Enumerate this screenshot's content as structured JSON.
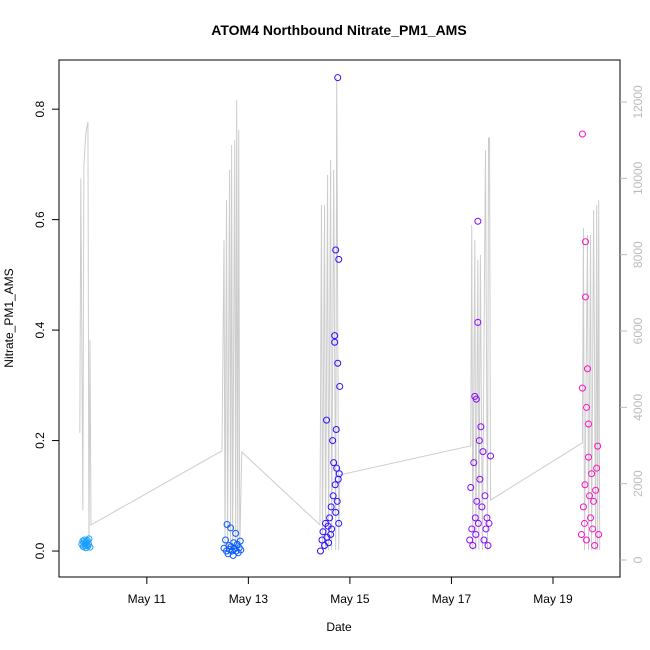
{
  "chart_data": {
    "type": "scatter",
    "title": "ATOM4 Northbound Nitrate_PM1_AMS",
    "x_label": "Date",
    "y_label": "Nitrate_PM1_AMS",
    "xlim": [
      9.27,
      20.32
    ],
    "xticks": [
      {
        "value": 11,
        "label": "May 11"
      },
      {
        "value": 13,
        "label": "May 13"
      },
      {
        "value": 15,
        "label": "May 15"
      },
      {
        "value": 17,
        "label": "May 17"
      },
      {
        "value": 19,
        "label": "May 19"
      }
    ],
    "ylim": [
      -0.047,
      0.889
    ],
    "yticks": [
      {
        "value": 0,
        "label": "0.0"
      },
      0.2,
      0.4,
      0.6,
      0.8
    ],
    "y2lim": [
      -445,
      13100
    ],
    "y2ticks": [
      0,
      2000,
      4000,
      6000,
      8000,
      10000,
      12000
    ],
    "y2_color": "#bbbbbb",
    "series": [
      {
        "color": "#1aa0ff",
        "x": [
          9.72,
          9.74,
          9.75,
          9.76,
          9.77,
          9.78,
          9.79,
          9.8,
          9.81,
          9.82,
          9.83,
          9.84,
          9.85,
          9.86,
          9.88
        ],
        "values": [
          0.012,
          0.018,
          0.008,
          0.015,
          0.02,
          0.01,
          0.014,
          0.006,
          0.017,
          0.011,
          0.019,
          0.009,
          0.013,
          0.022,
          0.007
        ]
      },
      {
        "color": "#0a5cff",
        "x": [
          12.52,
          12.55,
          12.57,
          12.58,
          12.6,
          12.62,
          12.63,
          12.65,
          12.66,
          12.68,
          12.7,
          12.71,
          12.73,
          12.75,
          12.76,
          12.78,
          12.8,
          12.82,
          12.84,
          12.85
        ],
        "values": [
          0.005,
          0.02,
          0.0,
          0.048,
          -0.005,
          0.01,
          0.003,
          0.042,
          0.008,
          0.0,
          -0.008,
          0.015,
          0.004,
          0.032,
          0.0,
          0.012,
          -0.003,
          0.006,
          0.018,
          0.002
        ]
      },
      {
        "color": "#2a10ff",
        "x": [
          14.42,
          14.45,
          14.47,
          14.5,
          14.52,
          14.54,
          14.55,
          14.57,
          14.58,
          14.6,
          14.62,
          14.63,
          14.64,
          14.66,
          14.67,
          14.68,
          14.7,
          14.7,
          14.71,
          14.72,
          14.72,
          14.73,
          14.74,
          14.75,
          14.76,
          14.76,
          14.77,
          14.78,
          14.78,
          14.79,
          14.8
        ],
        "values": [
          0.0,
          0.02,
          0.035,
          0.01,
          0.05,
          0.237,
          0.025,
          0.045,
          0.015,
          0.06,
          0.03,
          0.08,
          0.04,
          0.2,
          0.1,
          0.16,
          0.39,
          0.378,
          0.12,
          0.545,
          0.07,
          0.22,
          0.15,
          0.09,
          0.857,
          0.34,
          0.13,
          0.528,
          0.05,
          0.14,
          0.298
        ]
      },
      {
        "color": "#8a0aff",
        "x": [
          17.36,
          17.38,
          17.4,
          17.42,
          17.44,
          17.46,
          17.47,
          17.48,
          17.49,
          17.5,
          17.52,
          17.52,
          17.53,
          17.55,
          17.56,
          17.58,
          17.6,
          17.62,
          17.64,
          17.66,
          17.68,
          17.7,
          17.72,
          17.74,
          17.77
        ],
        "values": [
          0.02,
          0.115,
          0.04,
          0.01,
          0.16,
          0.28,
          0.06,
          0.03,
          0.275,
          0.09,
          0.597,
          0.414,
          0.05,
          0.2,
          0.13,
          0.225,
          0.08,
          0.18,
          0.02,
          0.1,
          0.04,
          0.06,
          0.01,
          0.05,
          0.172
        ]
      },
      {
        "color": "#ff10c8",
        "x": [
          19.56,
          19.58,
          19.58,
          19.6,
          19.62,
          19.63,
          19.64,
          19.64,
          19.66,
          19.66,
          19.68,
          19.7,
          19.7,
          19.72,
          19.74,
          19.76,
          19.78,
          19.8,
          19.82,
          19.84,
          19.86,
          19.88,
          19.9
        ],
        "values": [
          0.03,
          0.755,
          0.295,
          0.08,
          0.05,
          0.12,
          0.56,
          0.46,
          0.26,
          0.02,
          0.33,
          0.23,
          0.17,
          0.1,
          0.06,
          0.14,
          0.04,
          0.09,
          0.01,
          0.11,
          0.15,
          0.19,
          0.03
        ]
      },
      {
        "color": "#cccccc",
        "axis": "y2",
        "style": "line",
        "x": [
          9.68,
          9.7,
          9.74,
          9.76,
          9.8,
          9.84,
          9.86,
          9.88,
          9.9,
          12.48,
          12.52,
          12.54,
          12.57,
          12.59,
          12.63,
          12.65,
          12.67,
          12.69,
          12.73,
          12.75,
          12.77,
          12.79,
          12.81,
          12.83,
          12.87,
          14.41,
          14.44,
          14.46,
          14.5,
          14.52,
          14.56,
          14.58,
          14.62,
          14.64,
          14.68,
          14.72,
          14.74,
          14.78,
          14.8,
          17.38,
          17.4,
          17.42,
          17.46,
          17.48,
          17.52,
          17.54,
          17.57,
          17.61,
          17.67,
          17.71,
          17.73,
          17.75,
          17.77,
          19.58,
          19.6,
          19.62,
          19.68,
          19.7,
          19.74,
          19.76,
          19.8,
          19.84,
          19.86,
          19.88,
          19.9,
          19.92
        ],
        "values": [
          3330,
          10000,
          1310,
          10350,
          11200,
          11480,
          260,
          5760,
          920,
          2860,
          8380,
          260,
          9430,
          260,
          10220,
          260,
          10870,
          260,
          11000,
          260,
          12050,
          260,
          11270,
          260,
          2830,
          920,
          9300,
          260,
          9300,
          260,
          10090,
          260,
          10480,
          260,
          10220,
          260,
          12630,
          260,
          2230,
          2990,
          8780,
          260,
          8380,
          260,
          7860,
          260,
          7990,
          260,
          10740,
          260,
          11060,
          11060,
          1570,
          3070,
          8700,
          260,
          8520,
          260,
          8520,
          260,
          9170,
          260,
          9300,
          260,
          9430,
          260
        ]
      }
    ]
  }
}
